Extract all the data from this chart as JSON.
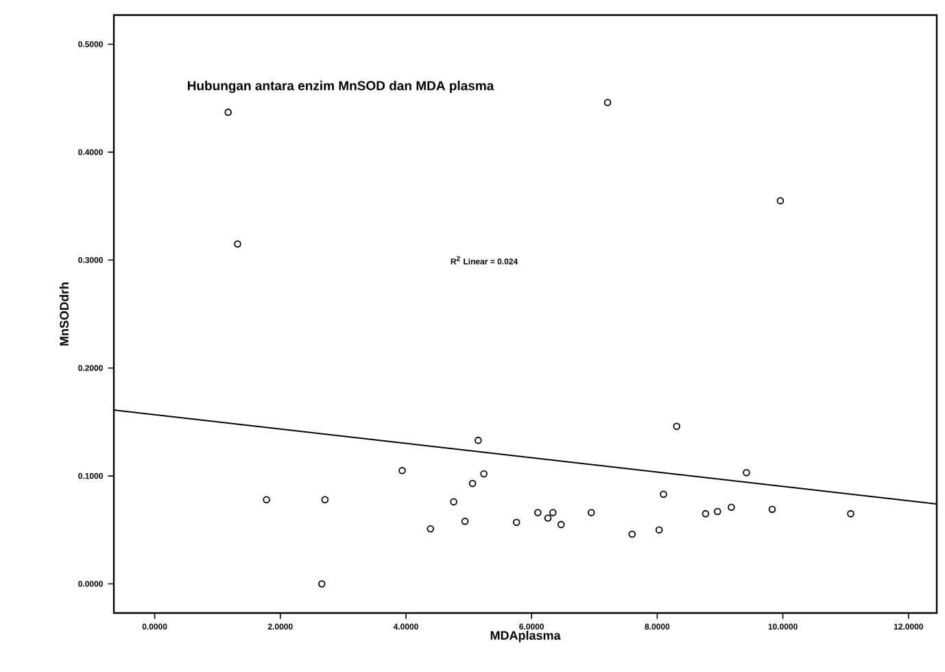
{
  "chart_data": {
    "type": "scatter",
    "title": "Hubungan antara enzim MnSOD dan MDA plasma",
    "xlabel": "MDAplasma",
    "ylabel": "MnSODdrh",
    "annotations": [
      "R$^{2}$ Linear = 0.024"
    ],
    "xlim": [
      -0.65,
      12.45
    ],
    "ylim": [
      -0.027,
      0.527
    ],
    "xticks": [
      {
        "value": 0,
        "label": "0.0000"
      },
      {
        "value": 2,
        "label": "2.0000"
      },
      {
        "value": 4,
        "label": "4.0000"
      },
      {
        "value": 6,
        "label": "6.0000"
      },
      {
        "value": 8,
        "label": "8.0000"
      },
      {
        "value": 10,
        "label": "10.0000"
      },
      {
        "value": 12,
        "label": "12.0000"
      }
    ],
    "yticks": [
      {
        "value": 0,
        "label": "0.0000"
      },
      {
        "value": 0.1,
        "label": "0.1000"
      },
      {
        "value": 0.2,
        "label": "0.2000"
      },
      {
        "value": 0.3,
        "label": "0.3000"
      },
      {
        "value": 0.4,
        "label": "0.4000"
      },
      {
        "value": 0.5,
        "label": "0.5000"
      }
    ],
    "grid": false,
    "marker": "circle",
    "series": [
      {
        "color": "#000000",
        "x": [
          1.17,
          1.32,
          7.21,
          9.96,
          1.78,
          2.71,
          2.66,
          3.94,
          4.39,
          4.76,
          4.94,
          5.06,
          5.15,
          5.24,
          5.76,
          6.1,
          6.26,
          6.34,
          6.47,
          6.95,
          7.6,
          8.03,
          8.1,
          8.31,
          8.77,
          8.96,
          9.18,
          9.42,
          9.83,
          11.08
        ],
        "values": [
          0.437,
          0.315,
          0.446,
          0.355,
          0.078,
          0.078,
          0.0,
          0.105,
          0.051,
          0.076,
          0.058,
          0.093,
          0.133,
          0.102,
          0.057,
          0.066,
          0.061,
          0.066,
          0.055,
          0.066,
          0.046,
          0.05,
          0.083,
          0.146,
          0.065,
          0.067,
          0.071,
          0.103,
          0.069,
          0.065
        ]
      },
      {
        "type": "line",
        "color": "#000000",
        "marker": "none",
        "x": [
          -0.65,
          12.45
        ],
        "values": [
          0.161,
          0.074
        ]
      }
    ]
  }
}
